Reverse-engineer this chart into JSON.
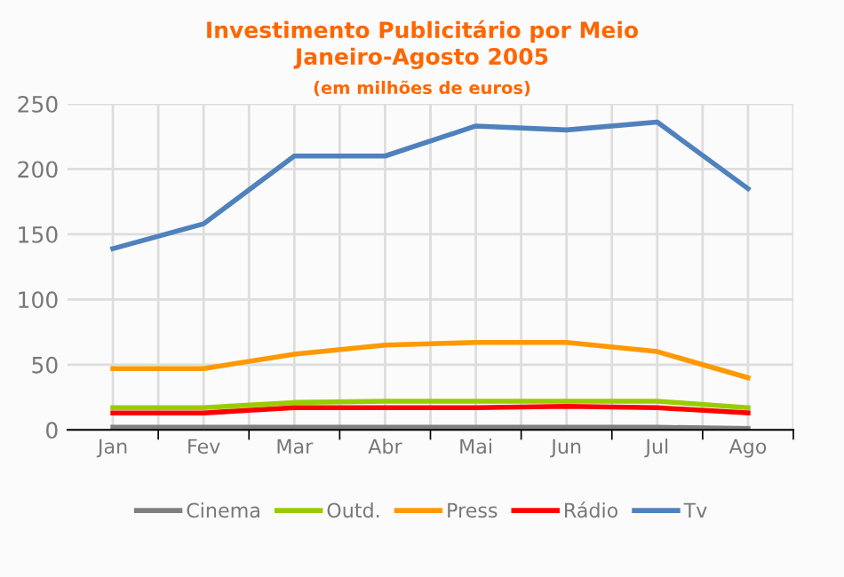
{
  "chart_data": {
    "type": "line",
    "title": "Investimento Publicitário por Meio\nJaneiro-Agosto 2005",
    "subtitle": "(em milhões de euros)",
    "categories": [
      "Jan",
      "Fev",
      "Mar",
      "Abr",
      "Mai",
      "Jun",
      "Jul",
      "Ago"
    ],
    "series": [
      {
        "name": "Cinema",
        "color": "#808080",
        "values": [
          2,
          2,
          2,
          2,
          2,
          2,
          2,
          1
        ]
      },
      {
        "name": "Outd.",
        "color": "#99cc00",
        "values": [
          17,
          17,
          21,
          22,
          22,
          22,
          22,
          17
        ]
      },
      {
        "name": "Press",
        "color": "#ff9900",
        "values": [
          47,
          47,
          58,
          65,
          67,
          67,
          60,
          40
        ]
      },
      {
        "name": "Rádio",
        "color": "#ff0000",
        "values": [
          13,
          13,
          17,
          17,
          17,
          18,
          17,
          13
        ]
      },
      {
        "name": "Tv",
        "color": "#4f81bd",
        "values": [
          139,
          158,
          210,
          210,
          233,
          230,
          236,
          185
        ]
      }
    ],
    "ylim": [
      0,
      250
    ],
    "yticks": [
      0,
      50,
      100,
      150,
      200,
      250
    ],
    "grid": true,
    "legend": "bottom",
    "marker": "none",
    "line_style": "solid"
  }
}
